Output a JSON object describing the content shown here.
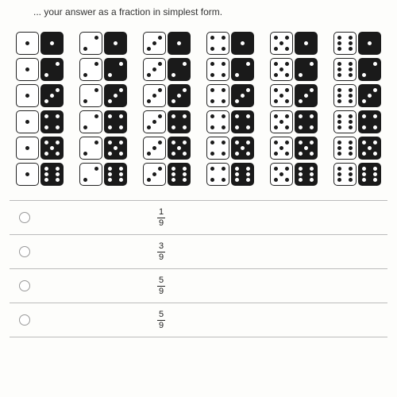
{
  "instruction_text": "... your answer as a fraction in simplest form.",
  "pip_layouts": {
    "1": [
      5
    ],
    "2": [
      3,
      7
    ],
    "3": [
      3,
      5,
      7
    ],
    "4": [
      1,
      3,
      7,
      9
    ],
    "5": [
      1,
      3,
      5,
      7,
      9
    ],
    "6": [
      1,
      3,
      4,
      6,
      7,
      9
    ]
  },
  "columns": [
    {
      "white_die": 1,
      "black_rows": [
        1,
        2,
        3,
        4,
        5,
        6
      ]
    },
    {
      "white_die": 2,
      "black_rows": [
        1,
        2,
        3,
        4,
        5,
        6
      ]
    },
    {
      "white_die": 3,
      "black_rows": [
        1,
        2,
        3,
        4,
        5,
        6
      ]
    },
    {
      "white_die": 4,
      "black_rows": [
        1,
        2,
        3,
        4,
        5,
        6
      ]
    },
    {
      "white_die": 5,
      "black_rows": [
        1,
        2,
        3,
        4,
        5,
        6
      ]
    },
    {
      "white_die": 6,
      "black_rows": [
        1,
        2,
        3,
        4,
        5,
        6
      ]
    }
  ],
  "answers": [
    {
      "num": "1",
      "den": "9"
    },
    {
      "num": "3",
      "den": "9"
    },
    {
      "num": "5",
      "den": "9"
    },
    {
      "num": "5",
      "den": "9"
    }
  ],
  "colors": {
    "page_bg": "#fdfdfb",
    "die_white_bg": "#ffffff",
    "die_black_bg": "#1a1a1a",
    "pip_on_white": "#1a1a1a",
    "pip_on_black": "#ffffff",
    "border": "#bbbbbb"
  }
}
